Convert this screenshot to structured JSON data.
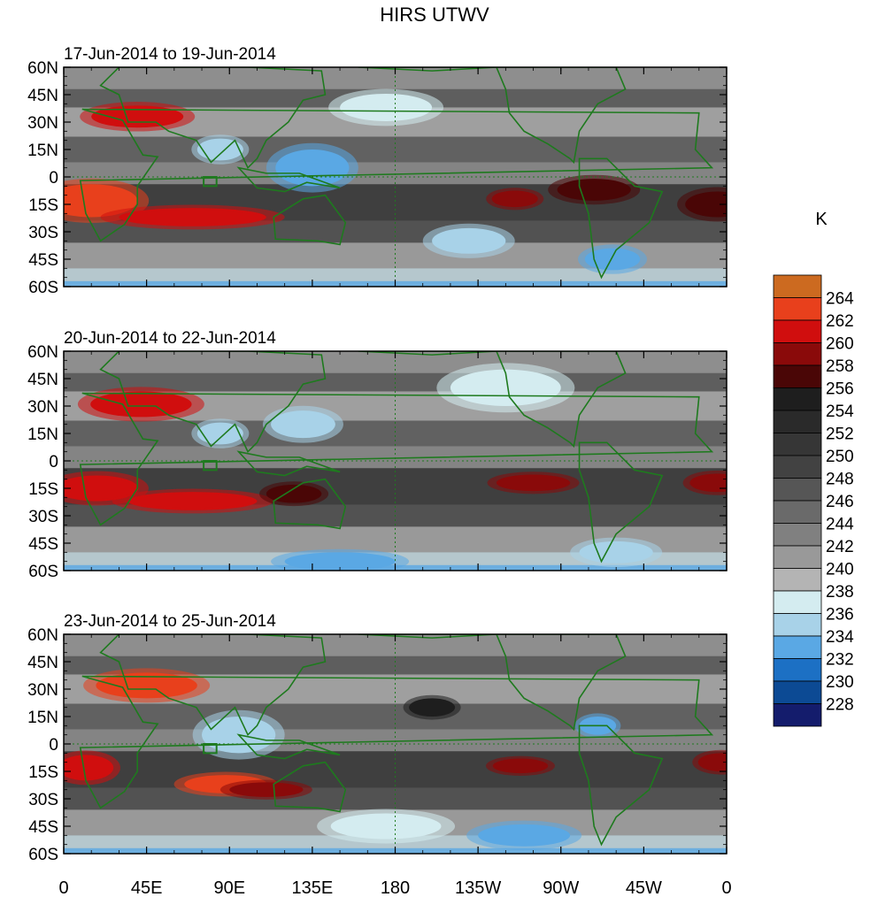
{
  "chart_data": {
    "type": "heatmap",
    "title": "HIRS UTWV",
    "units": "K",
    "colorbar": {
      "labels": [
        264,
        262,
        260,
        258,
        256,
        254,
        252,
        250,
        248,
        246,
        244,
        242,
        240,
        238,
        236,
        234,
        232,
        230,
        228
      ],
      "colors": [
        "#cc6a20",
        "#e8401c",
        "#d00e0e",
        "#8a0a0a",
        "#4a0606",
        "#1e1e1e",
        "#2a2a2a",
        "#363636",
        "#424242",
        "#565656",
        "#6a6a6a",
        "#808080",
        "#999999",
        "#b4b4b4",
        "#d4ecf0",
        "#a8d2e8",
        "#5aa8e4",
        "#1c70c4",
        "#0c4a94",
        "#141c6c"
      ]
    },
    "x_ticks": [
      "0",
      "45E",
      "90E",
      "135E",
      "180",
      "135W",
      "90W",
      "45W",
      "0"
    ],
    "y_ticks": [
      "60N",
      "45N",
      "30N",
      "15N",
      "0",
      "15S",
      "30S",
      "45S",
      "60S"
    ],
    "panels": [
      {
        "label": "17-Jun-2014 to 19-Jun-2014",
        "features": [
          {
            "lon": 40,
            "lat": 33,
            "value": 261,
            "w": 50,
            "h": 12
          },
          {
            "lon": 15,
            "lat": -13,
            "value": 262,
            "w": 50,
            "h": 18
          },
          {
            "lon": 70,
            "lat": -22,
            "value": 260,
            "w": 80,
            "h": 10
          },
          {
            "lon": 245,
            "lat": -12,
            "value": 258,
            "w": 25,
            "h": 9
          },
          {
            "lon": 288,
            "lat": -7,
            "value": 257,
            "w": 40,
            "h": 12
          },
          {
            "lon": 355,
            "lat": -15,
            "value": 256,
            "w": 35,
            "h": 14
          },
          {
            "lon": 85,
            "lat": 15,
            "value": 234,
            "w": 25,
            "h": 12
          },
          {
            "lon": 135,
            "lat": 5,
            "value": 233,
            "w": 40,
            "h": 20
          },
          {
            "lon": 175,
            "lat": 38,
            "value": 236,
            "w": 50,
            "h": 15
          },
          {
            "lon": 298,
            "lat": -45,
            "value": 232,
            "w": 30,
            "h": 12
          },
          {
            "lon": 220,
            "lat": -35,
            "value": 235,
            "w": 40,
            "h": 14
          }
        ]
      },
      {
        "label": "20-Jun-2014 to 22-Jun-2014",
        "features": [
          {
            "lon": 42,
            "lat": 31,
            "value": 261,
            "w": 55,
            "h": 14
          },
          {
            "lon": 18,
            "lat": -15,
            "value": 261,
            "w": 45,
            "h": 14
          },
          {
            "lon": 70,
            "lat": -22,
            "value": 260,
            "w": 70,
            "h": 10
          },
          {
            "lon": 255,
            "lat": -12,
            "value": 258,
            "w": 40,
            "h": 9
          },
          {
            "lon": 355,
            "lat": -12,
            "value": 258,
            "w": 30,
            "h": 10
          },
          {
            "lon": 125,
            "lat": -18,
            "value": 257,
            "w": 30,
            "h": 10
          },
          {
            "lon": 85,
            "lat": 15,
            "value": 234,
            "w": 25,
            "h": 12
          },
          {
            "lon": 130,
            "lat": 20,
            "value": 234,
            "w": 35,
            "h": 15
          },
          {
            "lon": 240,
            "lat": 40,
            "value": 237,
            "w": 60,
            "h": 20
          },
          {
            "lon": 150,
            "lat": -55,
            "value": 233,
            "w": 60,
            "h": 10
          },
          {
            "lon": 300,
            "lat": -50,
            "value": 235,
            "w": 40,
            "h": 12
          }
        ]
      },
      {
        "label": "23-Jun-2014 to 25-Jun-2014",
        "features": [
          {
            "lon": 45,
            "lat": 32,
            "value": 262,
            "w": 55,
            "h": 14
          },
          {
            "lon": 12,
            "lat": -13,
            "value": 261,
            "w": 30,
            "h": 14
          },
          {
            "lon": 88,
            "lat": -22,
            "value": 262,
            "w": 45,
            "h": 10
          },
          {
            "lon": 110,
            "lat": -25,
            "value": 259,
            "w": 40,
            "h": 8
          },
          {
            "lon": 248,
            "lat": -12,
            "value": 258,
            "w": 30,
            "h": 8
          },
          {
            "lon": 357,
            "lat": -10,
            "value": 259,
            "w": 25,
            "h": 10
          },
          {
            "lon": 200,
            "lat": 20,
            "value": 255,
            "w": 25,
            "h": 10
          },
          {
            "lon": 95,
            "lat": 5,
            "value": 234,
            "w": 40,
            "h": 20
          },
          {
            "lon": 290,
            "lat": 10,
            "value": 233,
            "w": 20,
            "h": 10
          },
          {
            "lon": 250,
            "lat": -50,
            "value": 233,
            "w": 50,
            "h": 12
          },
          {
            "lon": 175,
            "lat": -45,
            "value": 236,
            "w": 60,
            "h": 14
          }
        ]
      }
    ]
  }
}
